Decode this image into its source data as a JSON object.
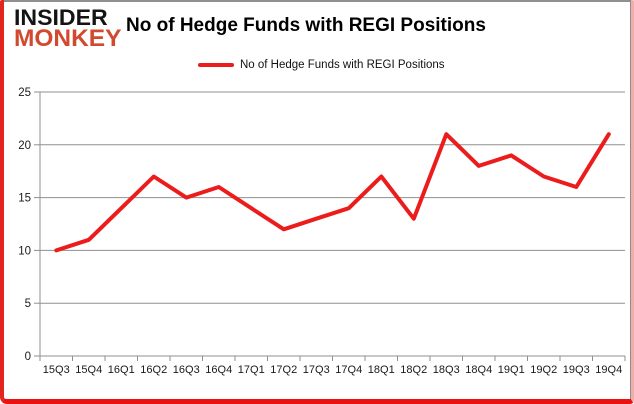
{
  "logo": {
    "line1": "INSIDER",
    "line2": "MONKEY"
  },
  "header": {
    "title": "No of Hedge Funds with REGI Positions"
  },
  "legend": {
    "label": "No of Hedge Funds with REGI Positions"
  },
  "colors": {
    "series_red": "#ec1c1c",
    "logo_red": "#d1492f",
    "gridline_gray": "#8f8f8f",
    "axis_text": "#1a1a1a"
  },
  "chart_data": {
    "type": "line",
    "title": "No of Hedge Funds with REGI Positions",
    "categories": [
      "15Q3",
      "15Q4",
      "16Q1",
      "16Q2",
      "16Q3",
      "16Q4",
      "17Q1",
      "17Q2",
      "17Q3",
      "17Q4",
      "18Q1",
      "18Q2",
      "18Q3",
      "18Q4",
      "19Q1",
      "19Q2",
      "19Q3",
      "19Q4"
    ],
    "series": [
      {
        "name": "No of Hedge Funds with REGI Positions",
        "color": "#ec1c1c",
        "values": [
          10,
          11,
          14,
          17,
          15,
          16,
          14,
          12,
          13,
          14,
          17,
          13,
          21,
          18,
          19,
          17,
          16,
          21
        ]
      }
    ],
    "ylim": [
      0,
      25
    ],
    "yticks": [
      0,
      5,
      10,
      15,
      20,
      25
    ],
    "grid": "horizontal",
    "legend_position": "top-center"
  }
}
